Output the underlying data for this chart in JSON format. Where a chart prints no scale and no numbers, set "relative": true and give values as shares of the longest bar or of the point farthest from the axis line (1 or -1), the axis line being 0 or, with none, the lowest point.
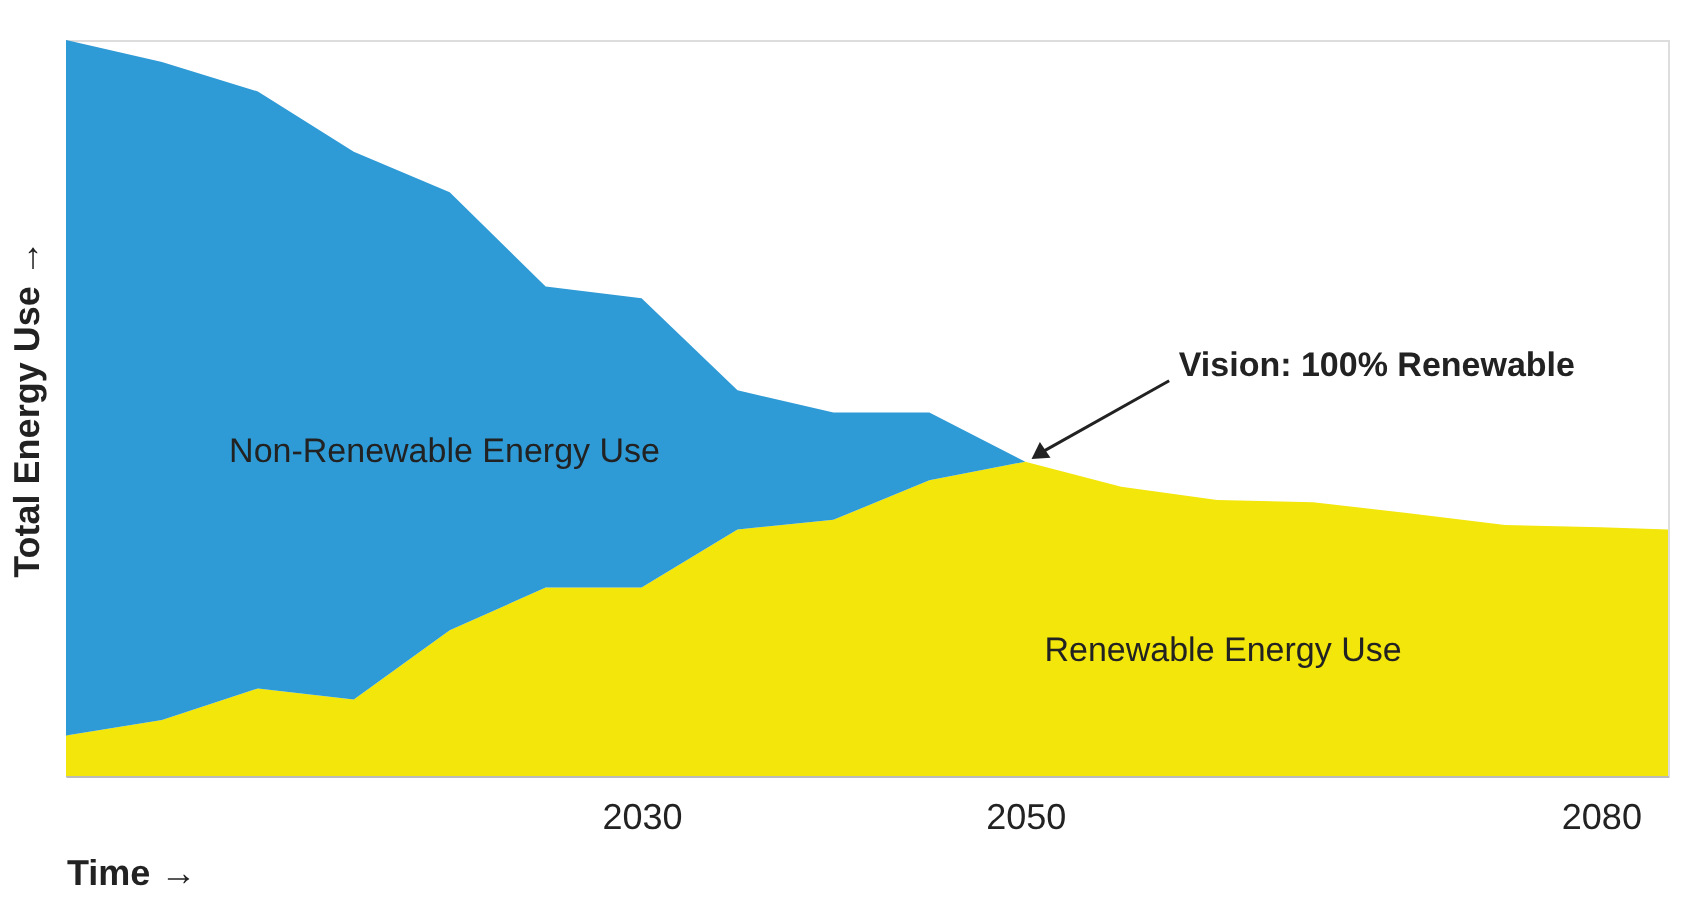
{
  "chart_data": {
    "type": "area",
    "stacked": true,
    "relative": true,
    "xlabel": "Time →",
    "ylabel": "Total Energy Use →",
    "x": [
      2000,
      2005,
      2010,
      2015,
      2020,
      2025,
      2030,
      2035,
      2040,
      2045,
      2050,
      2055,
      2060,
      2065,
      2070,
      2075,
      2080,
      2083.5
    ],
    "xlim": [
      2000,
      2083.5
    ],
    "xticks": [
      2030,
      2050,
      2080
    ],
    "series": [
      {
        "name": "Renewable Energy Use",
        "color": "#f2e60a",
        "values": [
          0.055,
          0.076,
          0.119,
          0.104,
          0.198,
          0.256,
          0.256,
          0.335,
          0.348,
          0.402,
          0.427,
          0.393,
          0.375,
          0.372,
          0.357,
          0.341,
          0.338,
          0.335
        ]
      },
      {
        "name": "Non-Renewable Energy Use",
        "color": "#2e9ad6",
        "values": [
          0.945,
          0.894,
          0.811,
          0.744,
          0.595,
          0.409,
          0.393,
          0.189,
          0.146,
          0.092,
          0,
          0,
          0,
          0,
          0,
          0,
          0,
          0
        ]
      }
    ],
    "annotations": [
      {
        "text": "Vision: 100% Renewable",
        "x": 2050,
        "y": 0.427
      }
    ],
    "grid": false,
    "legend": false
  }
}
